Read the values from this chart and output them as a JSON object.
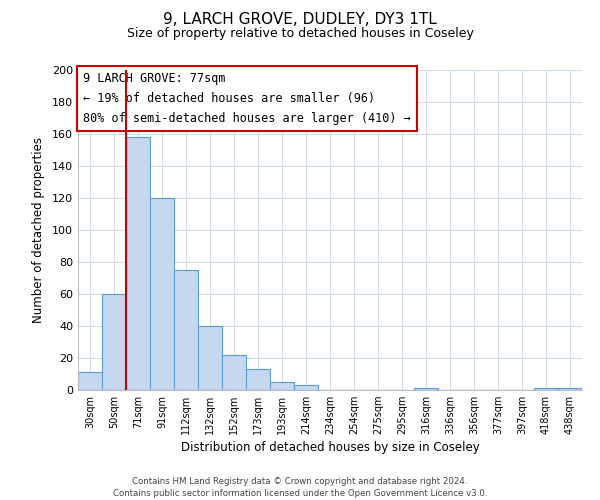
{
  "title": "9, LARCH GROVE, DUDLEY, DY3 1TL",
  "subtitle": "Size of property relative to detached houses in Coseley",
  "xlabel": "Distribution of detached houses by size in Coseley",
  "ylabel": "Number of detached properties",
  "bar_labels": [
    "30sqm",
    "50sqm",
    "71sqm",
    "91sqm",
    "112sqm",
    "132sqm",
    "152sqm",
    "173sqm",
    "193sqm",
    "214sqm",
    "234sqm",
    "254sqm",
    "275sqm",
    "295sqm",
    "316sqm",
    "336sqm",
    "356sqm",
    "377sqm",
    "397sqm",
    "418sqm",
    "438sqm"
  ],
  "bar_values": [
    11,
    60,
    158,
    120,
    75,
    40,
    22,
    13,
    5,
    3,
    0,
    0,
    0,
    0,
    1,
    0,
    0,
    0,
    0,
    1,
    1
  ],
  "bar_color": "#c5d8f0",
  "bar_edge_color": "#5b9bd5",
  "vline_x": 2,
  "vline_color": "#cc0000",
  "ylim": [
    0,
    200
  ],
  "yticks": [
    0,
    20,
    40,
    60,
    80,
    100,
    120,
    140,
    160,
    180,
    200
  ],
  "annotation_title": "9 LARCH GROVE: 77sqm",
  "annotation_line1": "← 19% of detached houses are smaller (96)",
  "annotation_line2": "80% of semi-detached houses are larger (410) →",
  "footer_line1": "Contains HM Land Registry data © Crown copyright and database right 2024.",
  "footer_line2": "Contains public sector information licensed under the Open Government Licence v3.0.",
  "background_color": "#ffffff",
  "grid_color": "#d0dce8"
}
